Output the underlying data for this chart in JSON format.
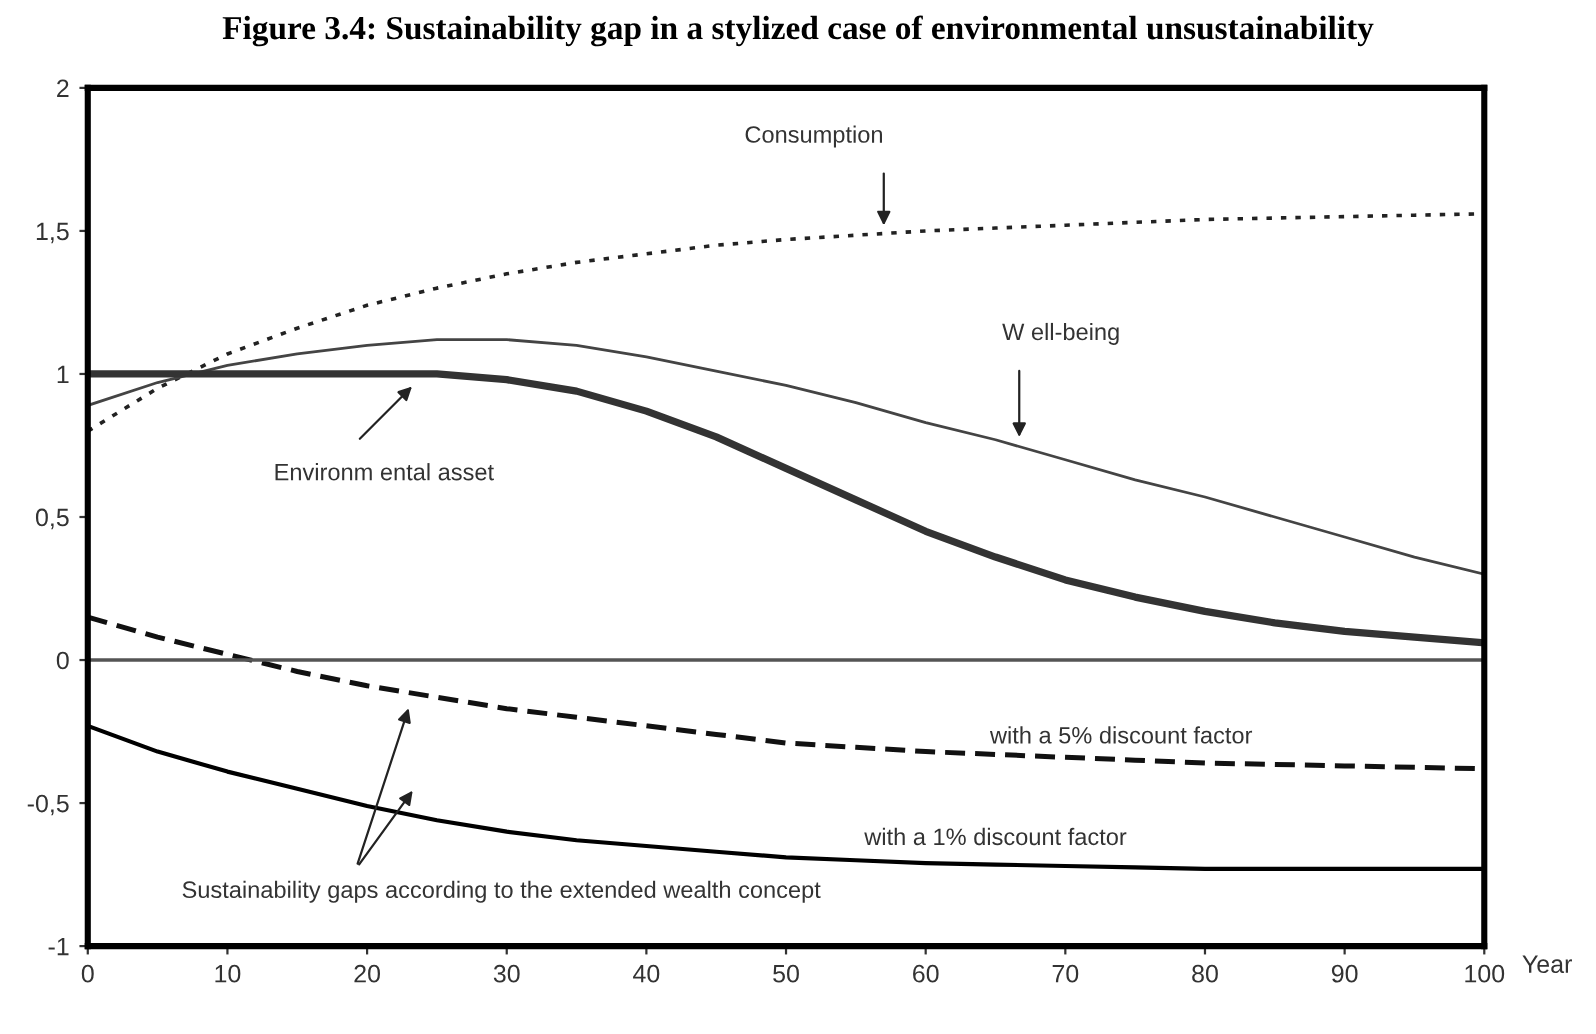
{
  "chart_data": {
    "type": "line",
    "title": "Figure 3.4: Sustainability gap in a stylized case of environmental unsustainability",
    "xlabel": "Year",
    "xlim": [
      0,
      100
    ],
    "xticks": [
      0,
      10,
      20,
      30,
      40,
      50,
      60,
      70,
      80,
      90,
      100
    ],
    "ylim": [
      -1,
      2
    ],
    "yticks": [
      {
        "value": -1,
        "label": "-1"
      },
      {
        "value": -0.5,
        "label": "-0,5"
      },
      {
        "value": 0,
        "label": "0"
      },
      {
        "value": 0.5,
        "label": "0,5"
      },
      {
        "value": 1,
        "label": "1"
      },
      {
        "value": 1.5,
        "label": "1,5"
      },
      {
        "value": 2,
        "label": "2"
      }
    ],
    "grid": false,
    "legend": false,
    "x": [
      0,
      5,
      10,
      15,
      20,
      25,
      30,
      35,
      40,
      45,
      50,
      55,
      60,
      65,
      70,
      75,
      80,
      85,
      90,
      95,
      100
    ],
    "series": [
      {
        "color": "#222222",
        "line_style": "dotted",
        "values": [
          0.8,
          0.95,
          1.07,
          1.16,
          1.24,
          1.3,
          1.35,
          1.39,
          1.42,
          1.45,
          1.47,
          1.485,
          1.5,
          1.51,
          1.52,
          1.53,
          1.54,
          1.545,
          1.55,
          1.555,
          1.56
        ]
      },
      {
        "color": "#444444",
        "line_style": "solid",
        "values": [
          0.89,
          0.97,
          1.03,
          1.07,
          1.1,
          1.12,
          1.12,
          1.1,
          1.06,
          1.01,
          0.96,
          0.9,
          0.83,
          0.77,
          0.7,
          0.63,
          0.57,
          0.5,
          0.43,
          0.36,
          0.3
        ]
      },
      {
        "color": "#333333",
        "line_style": "solid",
        "values": [
          1.0,
          1.0,
          1.0,
          1.0,
          1.0,
          1.0,
          0.98,
          0.94,
          0.87,
          0.78,
          0.67,
          0.56,
          0.45,
          0.36,
          0.28,
          0.22,
          0.17,
          0.13,
          0.1,
          0.08,
          0.06
        ]
      },
      {
        "color": "#111111",
        "line_style": "dashed",
        "values": [
          0.15,
          0.08,
          0.02,
          -0.04,
          -0.09,
          -0.13,
          -0.17,
          -0.2,
          -0.23,
          -0.26,
          -0.29,
          -0.305,
          -0.32,
          -0.33,
          -0.34,
          -0.35,
          -0.36,
          -0.365,
          -0.37,
          -0.375,
          -0.38
        ]
      },
      {
        "color": "#000000",
        "line_style": "solid",
        "values": [
          -0.23,
          -0.32,
          -0.39,
          -0.45,
          -0.51,
          -0.56,
          -0.6,
          -0.63,
          -0.65,
          -0.67,
          -0.69,
          -0.7,
          -0.71,
          -0.715,
          -0.72,
          -0.725,
          -0.73,
          -0.73,
          -0.73,
          -0.73,
          -0.73
        ]
      }
    ],
    "ref_lines": [
      {
        "axis": "y",
        "value": 0,
        "color": "#555555"
      }
    ],
    "annotations": [
      {
        "text": "Consumption",
        "x": 57,
        "y": 1.5
      },
      {
        "text": "W ell-being",
        "x": 66.7,
        "y": 0.76
      },
      {
        "text": "Environm ental asset",
        "x": 23.5,
        "y": 0.97
      },
      {
        "text": "with a 5% discount factor",
        "x": 74,
        "y": -0.35
      },
      {
        "text": "with a 1% discount factor",
        "x": 65,
        "y": -0.715
      },
      {
        "text": "Sustainability gaps according to the extended wealth concept",
        "x": 23.1,
        "y": -0.15
      }
    ]
  }
}
